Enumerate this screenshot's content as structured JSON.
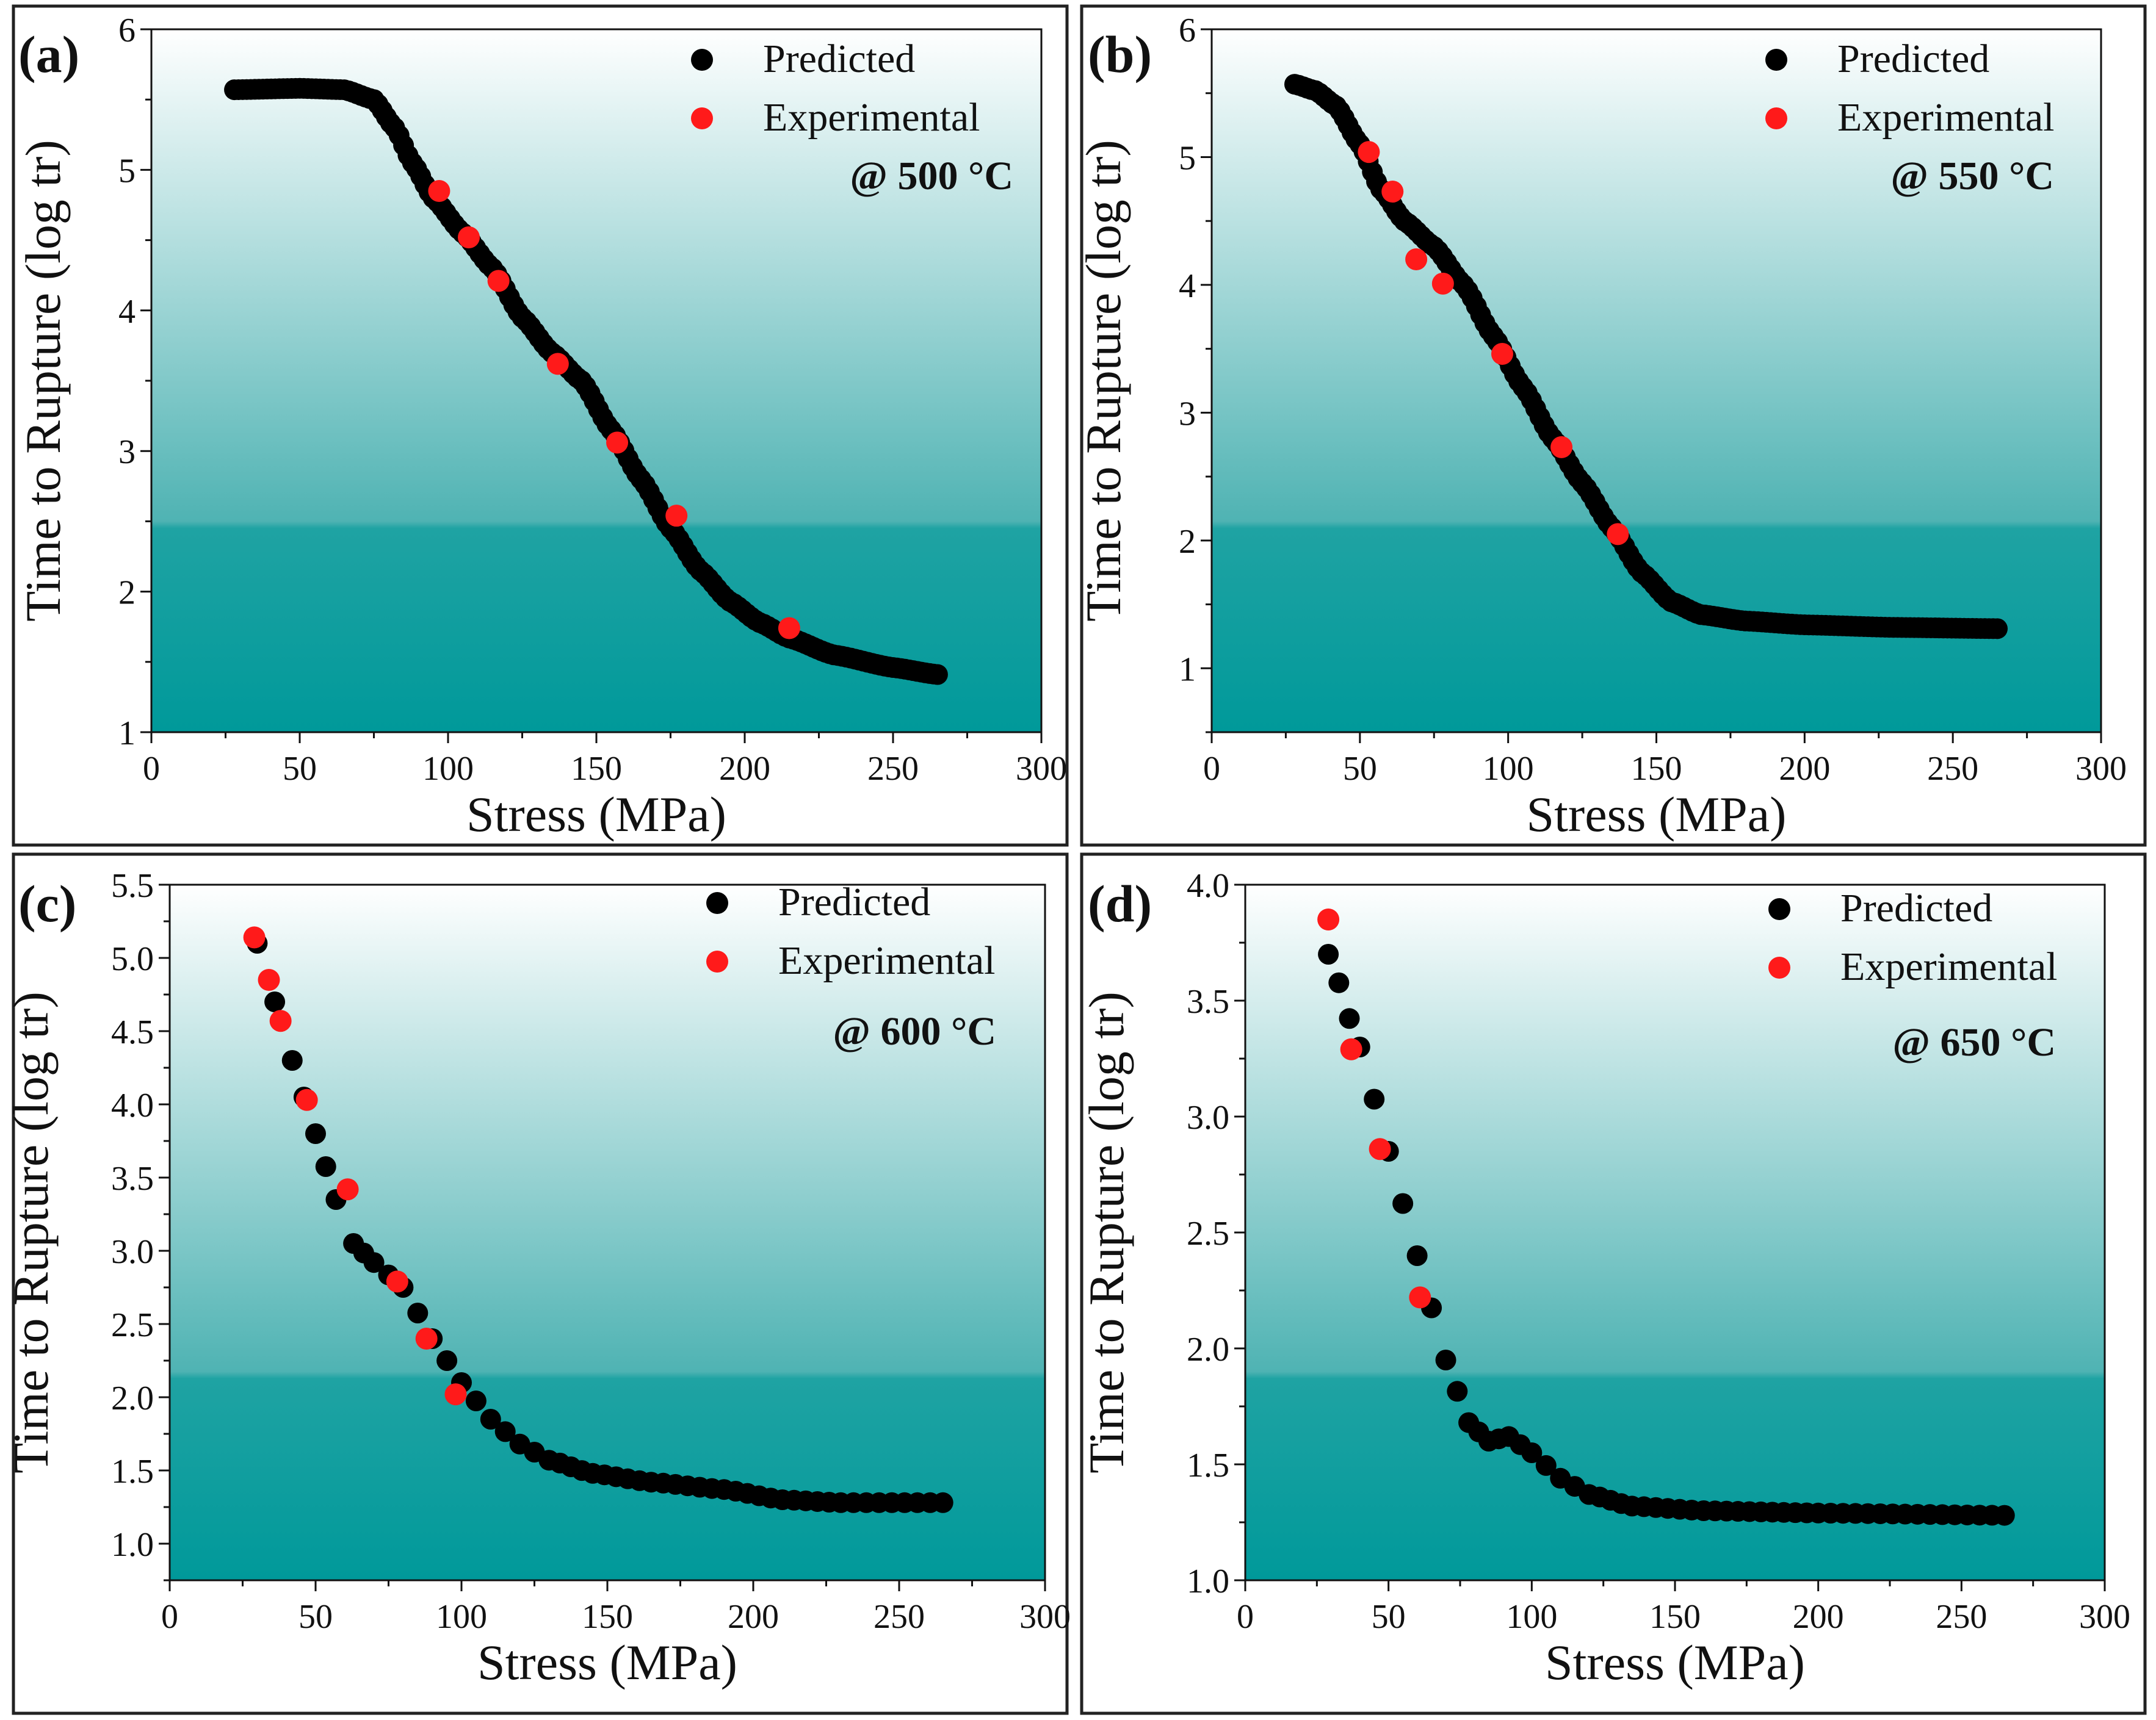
{
  "figure": {
    "colors": {
      "gradient_top": "#ffffff",
      "gradient_bottom": "#00999a",
      "predicted": "#000000",
      "experimental": "#ff1a1a"
    }
  },
  "chart_data": [
    {
      "type": "scatter",
      "panel_label": "(a)",
      "annotation": "@ 500 °C",
      "xlabel": "Stress (MPa)",
      "ylabel": "Time to Rupture (log tr)",
      "xlim": [
        0,
        300
      ],
      "ylim": [
        1,
        6
      ],
      "xticks": [
        0,
        50,
        100,
        150,
        200,
        250,
        300
      ],
      "xtick_labels": [
        "0",
        "50",
        "100",
        "150",
        "200",
        "250",
        "300"
      ],
      "yticks": [
        1,
        2,
        3,
        4,
        5,
        6
      ],
      "ytick_labels": [
        "1",
        "2",
        "3",
        "4",
        "5",
        "6"
      ],
      "legend": [
        "Predicted",
        "Experimental"
      ],
      "series": [
        {
          "name": "Predicted",
          "curve_knots": [
            [
              28,
              5.57
            ],
            [
              50,
              5.58
            ],
            [
              65,
              5.57
            ],
            [
              75,
              5.5
            ],
            [
              82,
              5.3
            ],
            [
              88,
              5.05
            ],
            [
              95,
              4.8
            ],
            [
              105,
              4.55
            ],
            [
              115,
              4.3
            ],
            [
              125,
              3.95
            ],
            [
              135,
              3.7
            ],
            [
              145,
              3.5
            ],
            [
              155,
              3.15
            ],
            [
              165,
              2.8
            ],
            [
              175,
              2.45
            ],
            [
              185,
              2.15
            ],
            [
              195,
              1.93
            ],
            [
              205,
              1.78
            ],
            [
              215,
              1.67
            ],
            [
              230,
              1.55
            ],
            [
              250,
              1.46
            ],
            [
              265,
              1.41
            ]
          ]
        },
        {
          "name": "Experimental",
          "x": [
            97,
            107,
            117,
            137,
            157,
            177,
            215
          ],
          "y": [
            4.85,
            4.52,
            4.21,
            3.62,
            3.06,
            2.54,
            1.74
          ]
        }
      ]
    },
    {
      "type": "scatter",
      "panel_label": "(b)",
      "annotation": "@ 550 °C",
      "xlabel": "Stress (MPa)",
      "ylabel": "Time to Rupture (log tr)",
      "xlim": [
        0,
        300
      ],
      "ylim": [
        0.5,
        6
      ],
      "xticks": [
        0,
        50,
        100,
        150,
        200,
        250,
        300
      ],
      "xtick_labels": [
        "0",
        "50",
        "100",
        "150",
        "200",
        "250",
        "300"
      ],
      "yticks": [
        1,
        2,
        3,
        4,
        5,
        6
      ],
      "ytick_labels": [
        "1",
        "2",
        "3",
        "4",
        "5",
        "6"
      ],
      "legend": [
        "Predicted",
        "Experimental"
      ],
      "series": [
        {
          "name": "Predicted",
          "curve_knots": [
            [
              28,
              5.57
            ],
            [
              35,
              5.52
            ],
            [
              42,
              5.4
            ],
            [
              50,
              5.1
            ],
            [
              57,
              4.75
            ],
            [
              65,
              4.5
            ],
            [
              75,
              4.3
            ],
            [
              85,
              4.0
            ],
            [
              95,
              3.6
            ],
            [
              105,
              3.2
            ],
            [
              115,
              2.8
            ],
            [
              125,
              2.45
            ],
            [
              135,
              2.1
            ],
            [
              145,
              1.75
            ],
            [
              155,
              1.52
            ],
            [
              165,
              1.42
            ],
            [
              180,
              1.37
            ],
            [
              200,
              1.34
            ],
            [
              230,
              1.32
            ],
            [
              265,
              1.31
            ]
          ]
        },
        {
          "name": "Experimental",
          "x": [
            53,
            61,
            69,
            78,
            98,
            118,
            137
          ],
          "y": [
            5.04,
            4.73,
            4.2,
            4.01,
            3.46,
            2.73,
            2.05
          ]
        }
      ]
    },
    {
      "type": "scatter",
      "panel_label": "(c)",
      "annotation": "@ 600 °C",
      "xlabel": "Stress (MPa)",
      "ylabel": "Time to Rupture (log tr)",
      "xlim": [
        0,
        300
      ],
      "ylim": [
        0.75,
        5.5
      ],
      "xticks": [
        0,
        50,
        100,
        150,
        200,
        250,
        300
      ],
      "xtick_labels": [
        "0",
        "50",
        "100",
        "150",
        "200",
        "250",
        "300"
      ],
      "yticks": [
        1.0,
        1.5,
        2.0,
        2.5,
        3.0,
        3.5,
        4.0,
        4.5,
        5.0,
        5.5
      ],
      "ytick_labels": [
        "1.0",
        "1.5",
        "2.0",
        "2.5",
        "3.0",
        "3.5",
        "4.0",
        "4.5",
        "5.0",
        "5.5"
      ],
      "legend": [
        "Predicted",
        "Experimental"
      ],
      "series": [
        {
          "name": "Predicted",
          "curve_knots": [
            [
              30,
              5.1
            ],
            [
              36,
              4.7
            ],
            [
              42,
              4.3
            ],
            [
              50,
              3.8
            ],
            [
              57,
              3.35
            ],
            [
              63,
              3.05
            ],
            [
              70,
              2.92
            ],
            [
              80,
              2.75
            ],
            [
              90,
              2.4
            ],
            [
              100,
              2.1
            ],
            [
              110,
              1.85
            ],
            [
              120,
              1.68
            ],
            [
              130,
              1.57
            ],
            [
              145,
              1.48
            ],
            [
              165,
              1.42
            ],
            [
              190,
              1.37
            ],
            [
              210,
              1.3
            ],
            [
              230,
              1.28
            ],
            [
              265,
              1.28
            ]
          ]
        },
        {
          "name": "Experimental",
          "x": [
            29,
            34,
            38,
            47,
            61,
            78,
            88,
            98
          ],
          "y": [
            5.14,
            4.85,
            4.57,
            4.03,
            3.42,
            2.79,
            2.4,
            2.02
          ]
        }
      ]
    },
    {
      "type": "scatter",
      "panel_label": "(d)",
      "annotation": "@ 650 °C",
      "xlabel": "Stress (MPa)",
      "ylabel": "Time to Rupture (log tr)",
      "xlim": [
        0,
        300
      ],
      "ylim": [
        1.0,
        4.0
      ],
      "xticks": [
        0,
        50,
        100,
        150,
        200,
        250,
        300
      ],
      "xtick_labels": [
        "0",
        "50",
        "100",
        "150",
        "200",
        "250",
        "300"
      ],
      "yticks": [
        1.0,
        1.5,
        2.0,
        2.5,
        3.0,
        3.5,
        4.0
      ],
      "ytick_labels": [
        "1.0",
        "1.5",
        "2.0",
        "2.5",
        "3.0",
        "3.5",
        "4.0"
      ],
      "legend": [
        "Predicted",
        "Experimental"
      ],
      "series": [
        {
          "name": "Predicted",
          "curve_knots": [
            [
              29,
              3.7
            ],
            [
              40,
              3.3
            ],
            [
              50,
              2.85
            ],
            [
              60,
              2.4
            ],
            [
              70,
              1.95
            ],
            [
              78,
              1.68
            ],
            [
              85,
              1.6
            ],
            [
              92,
              1.62
            ],
            [
              100,
              1.55
            ],
            [
              110,
              1.44
            ],
            [
              120,
              1.37
            ],
            [
              135,
              1.32
            ],
            [
              160,
              1.3
            ],
            [
              200,
              1.29
            ],
            [
              265,
              1.28
            ]
          ]
        },
        {
          "name": "Experimental",
          "x": [
            29,
            37,
            47,
            61
          ],
          "y": [
            3.85,
            3.29,
            2.86,
            2.22
          ]
        }
      ]
    }
  ]
}
